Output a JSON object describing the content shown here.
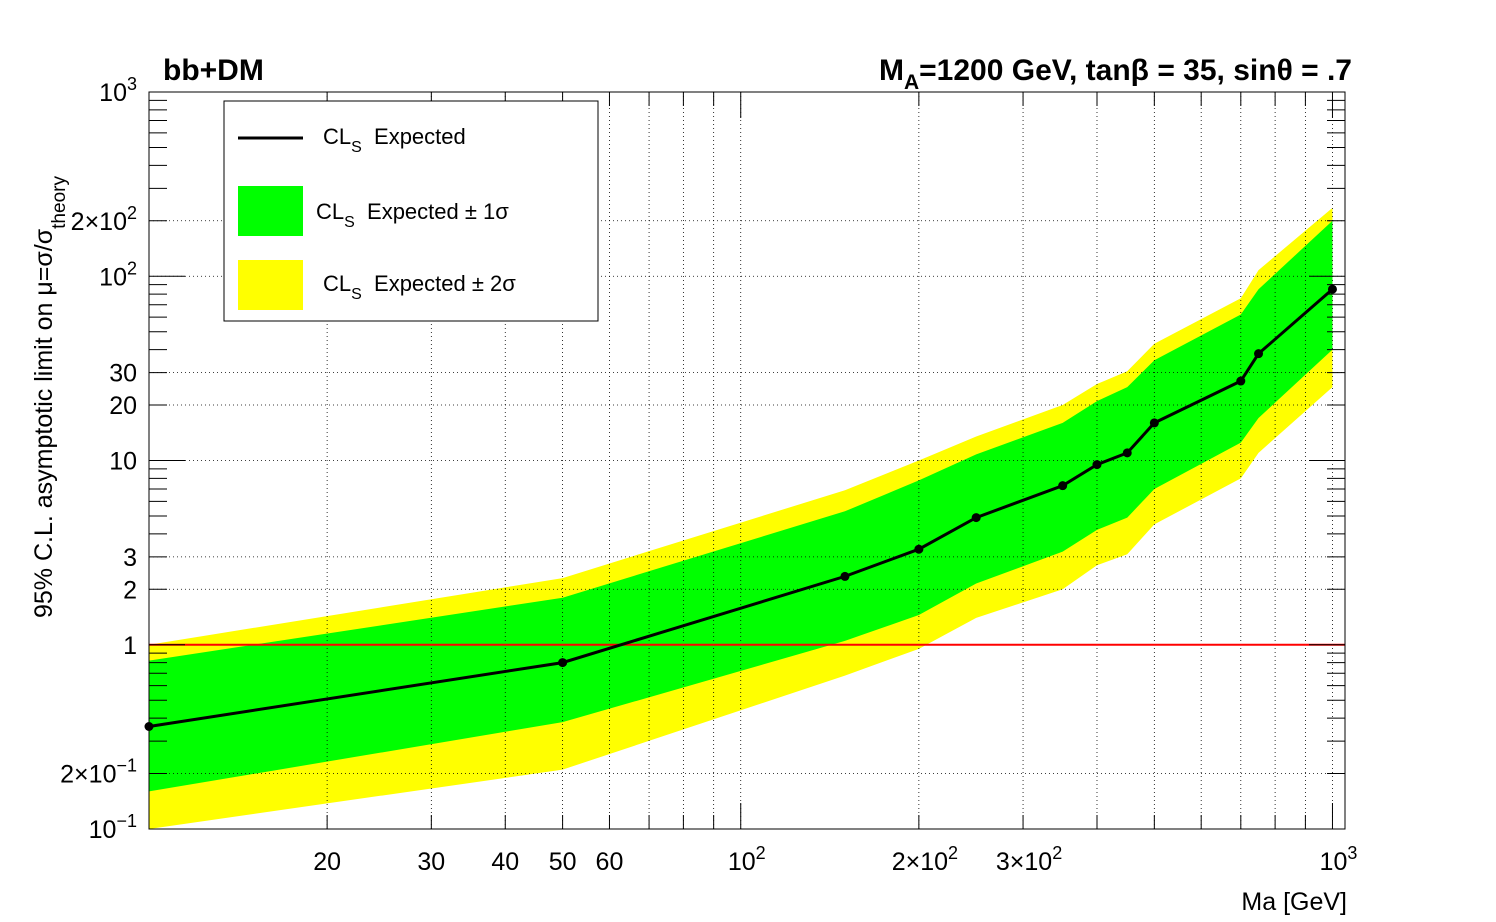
{
  "chart_data": {
    "type": "line",
    "title_left": "bb+DM",
    "title_right": {
      "m": "M",
      "m_sub": "A",
      "rest": "=1200 GeV, tanβ = 35, sinθ = .7"
    },
    "xlabel": "Ma [GeV]",
    "ylabel": {
      "main": "95% C.L. asymptotic limit on μ=σ/σ",
      "sub": "theory"
    },
    "xscale": "log",
    "yscale": "log",
    "xlim": [
      10,
      1050
    ],
    "ylim": [
      0.1,
      1000
    ],
    "grid": true,
    "x_ticks": [
      {
        "value": 20,
        "label": "20"
      },
      {
        "value": 30,
        "label": "30"
      },
      {
        "value": 40,
        "label": "40"
      },
      {
        "value": 50,
        "label": "50"
      },
      {
        "value": 60,
        "label": "60"
      },
      {
        "value": 100,
        "label": "10",
        "exp": "2"
      },
      {
        "value": 200,
        "label": "2×10",
        "exp": "2"
      },
      {
        "value": 300,
        "label": "3×10",
        "exp": "2"
      },
      {
        "value": 1000,
        "label": "10",
        "exp": "3"
      }
    ],
    "y_ticks": [
      {
        "value": 0.1,
        "label": "10",
        "exp": "−1"
      },
      {
        "value": 0.2,
        "label": "2×10",
        "exp": "−1"
      },
      {
        "value": 1,
        "label": "1"
      },
      {
        "value": 2,
        "label": "2"
      },
      {
        "value": 3,
        "label": "3"
      },
      {
        "value": 10,
        "label": "10"
      },
      {
        "value": 20,
        "label": "20"
      },
      {
        "value": 30,
        "label": "30"
      },
      {
        "value": 100,
        "label": "10",
        "exp": "2"
      },
      {
        "value": 200,
        "label": "2×10",
        "exp": "2"
      },
      {
        "value": 1000,
        "label": "10",
        "exp": "3"
      }
    ],
    "legend": {
      "placement": "top-left",
      "entries": [
        {
          "text": "CL",
          "sub": "S",
          "rest": "  Expected",
          "kind": "line",
          "color": "#000000"
        },
        {
          "text": "CL",
          "sub": "S",
          "rest": "  Expected ± 1σ",
          "kind": "fill",
          "color": "#00ff00"
        },
        {
          "text": "CL",
          "sub": "S",
          "rest": "  Expected ± 2σ",
          "kind": "fill",
          "color": "#ffff00"
        }
      ]
    },
    "x": [
      10,
      50,
      150,
      200,
      250,
      350,
      400,
      450,
      500,
      700,
      750,
      1000
    ],
    "series": [
      {
        "name": "CL_S Expected",
        "values": [
          0.36,
          0.8,
          2.35,
          3.3,
          4.9,
          7.3,
          9.5,
          11.0,
          16.0,
          27.0,
          38.0,
          85.0
        ],
        "color": "#000000"
      }
    ],
    "band_1sigma": {
      "color": "#00ff00",
      "low": [
        0.16,
        0.38,
        1.05,
        1.45,
        2.15,
        3.2,
        4.2,
        4.9,
        7.0,
        12.5,
        17.0,
        40.0
      ],
      "high": [
        0.82,
        1.8,
        5.3,
        7.8,
        10.8,
        16.0,
        21.0,
        25.0,
        35.0,
        62.0,
        85.0,
        200.0
      ]
    },
    "band_2sigma": {
      "color": "#ffff00",
      "low": [
        0.1,
        0.21,
        0.68,
        0.95,
        1.4,
        2.0,
        2.7,
        3.1,
        4.5,
        8.0,
        11.0,
        25.0
      ],
      "high": [
        1.0,
        2.3,
        6.9,
        10.0,
        13.5,
        20.0,
        26.0,
        30.5,
        43.0,
        76.0,
        108.0,
        235.0
      ]
    },
    "reference_line": {
      "y": 1,
      "color": "#ff0000"
    }
  }
}
